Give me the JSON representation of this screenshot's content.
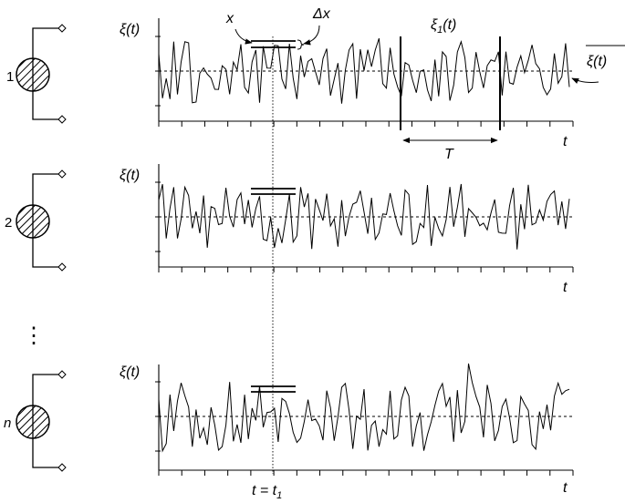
{
  "ensemble": {
    "rows": [
      {
        "index": "1",
        "ylabel": "ξ(t)",
        "tlabel": "t"
      },
      {
        "index": "2",
        "ylabel": "ξ(t)",
        "tlabel": "t"
      },
      {
        "index": "n",
        "ylabel": "ξ(t)",
        "tlabel": "t"
      }
    ],
    "ellipsis": "⋮"
  },
  "annotations": {
    "x": "x",
    "dx": "Δx",
    "xi1_prefix": "ξ",
    "xi1_sub": "1",
    "xi1_suffix": "(t)",
    "xibar": "ξ(t)",
    "T": "T",
    "t_eq": "t = t",
    "t_eq_sub": "1"
  },
  "colors": {
    "line": "#000000",
    "background": "#ffffff"
  },
  "icons": [
    "source-circle-hatched-icon",
    "terminal-diamond-icon"
  ]
}
